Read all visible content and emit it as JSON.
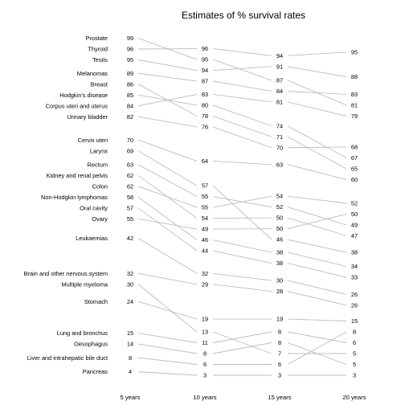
{
  "chart_data": {
    "type": "line",
    "title": "Estimates of % survival rates",
    "xlabel": "",
    "ylabel": "",
    "x": [
      "5 years",
      "10 years",
      "15 years",
      "20 years"
    ],
    "grid": false,
    "legend": "none",
    "series": [
      {
        "name": "Prostate",
        "values": [
          99,
          95,
          87,
          81
        ]
      },
      {
        "name": "Thyroid",
        "values": [
          96,
          96,
          94,
          95
        ]
      },
      {
        "name": "Testis",
        "values": [
          95,
          94,
          91,
          88
        ]
      },
      {
        "name": "Melanomas",
        "values": [
          89,
          87,
          84,
          83
        ]
      },
      {
        "name": "Breast",
        "values": [
          86,
          78,
          71,
          65
        ]
      },
      {
        "name": "Hodgkin's disease",
        "values": [
          85,
          80,
          74,
          67
        ]
      },
      {
        "name": "Corpus uteri and uterus",
        "values": [
          84,
          83,
          81,
          79
        ]
      },
      {
        "name": "Urinary bladder",
        "values": [
          82,
          76,
          70,
          68
        ]
      },
      {
        "name": "Cervix uteri",
        "values": [
          70,
          64,
          63,
          60
        ]
      },
      {
        "name": "Larynx",
        "values": [
          69,
          57,
          46,
          38
        ]
      },
      {
        "name": "Rectum",
        "values": [
          63,
          55,
          52,
          49
        ]
      },
      {
        "name": "Kidney and renal pelvis",
        "values": [
          62,
          54,
          50,
          47
        ]
      },
      {
        "name": "Colon",
        "values": [
          62,
          55,
          54,
          52
        ]
      },
      {
        "name": "Non-Hodgkin lymphomas",
        "values": [
          58,
          46,
          38,
          34
        ]
      },
      {
        "name": "Oral cavity",
        "values": [
          57,
          44,
          38,
          33
        ]
      },
      {
        "name": "Ovary",
        "values": [
          55,
          49,
          50,
          50
        ]
      },
      {
        "name": "Leukaemias",
        "values": [
          42,
          32,
          30,
          26
        ]
      },
      {
        "name": "Brain and other nervous system",
        "values": [
          32,
          29,
          28,
          26
        ]
      },
      {
        "name": "Multiple myeloma",
        "values": [
          30,
          13,
          7,
          5
        ]
      },
      {
        "name": "Stomach",
        "values": [
          24,
          19,
          19,
          15
        ]
      },
      {
        "name": "Lung and bronchus",
        "values": [
          15,
          11,
          8,
          6
        ]
      },
      {
        "name": "Oesophagus",
        "values": [
          14,
          8,
          8,
          5
        ]
      },
      {
        "name": "Liver and intrahepatic bile duct",
        "values": [
          8,
          6,
          6,
          8
        ]
      },
      {
        "name": "Pancreas",
        "values": [
          4,
          3,
          3,
          3
        ]
      }
    ]
  }
}
